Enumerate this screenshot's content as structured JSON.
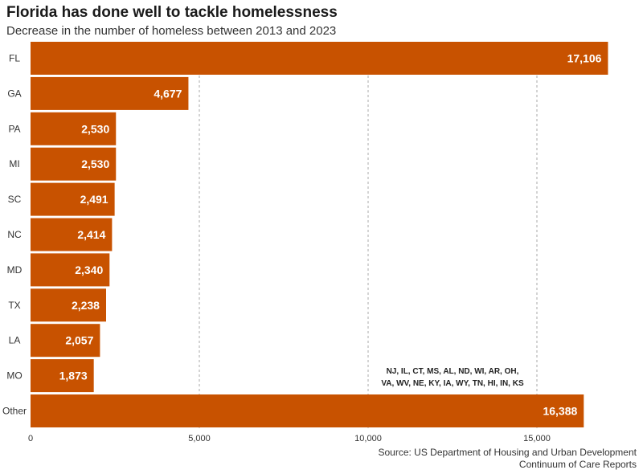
{
  "chart_data": {
    "type": "bar",
    "orientation": "horizontal",
    "title": "Florida has done well to tackle homelessness",
    "subtitle": "Decrease in the number of homeless between 2013 and 2023",
    "categories": [
      "FL",
      "GA",
      "PA",
      "MI",
      "SC",
      "NC",
      "MD",
      "TX",
      "LA",
      "MO",
      "Other"
    ],
    "values": [
      17106,
      4677,
      2530,
      2530,
      2491,
      2414,
      2340,
      2238,
      2057,
      1873,
      16388
    ],
    "value_labels": [
      "17,106",
      "4,677",
      "2,530",
      "2,530",
      "2,491",
      "2,414",
      "2,340",
      "2,238",
      "2,057",
      "1,873",
      "16,388"
    ],
    "xlim": [
      0,
      18000
    ],
    "xticks": [
      0,
      5000,
      10000,
      15000
    ],
    "xtick_labels": [
      "0",
      "5,000",
      "10,000",
      "15,000"
    ],
    "grid": "vertical dashed",
    "bar_color": "#c85200",
    "annotation": {
      "category": "Other",
      "line1": "NJ, IL, CT, MS, AL, ND, WI, AR, OH,",
      "line2": "VA, WV, NE, KY, IA, WY, TN, HI, IN, KS"
    },
    "source_line1": "Source: US Department of Housing and Urban Development",
    "source_line2": "Continuum of Care Reports"
  }
}
